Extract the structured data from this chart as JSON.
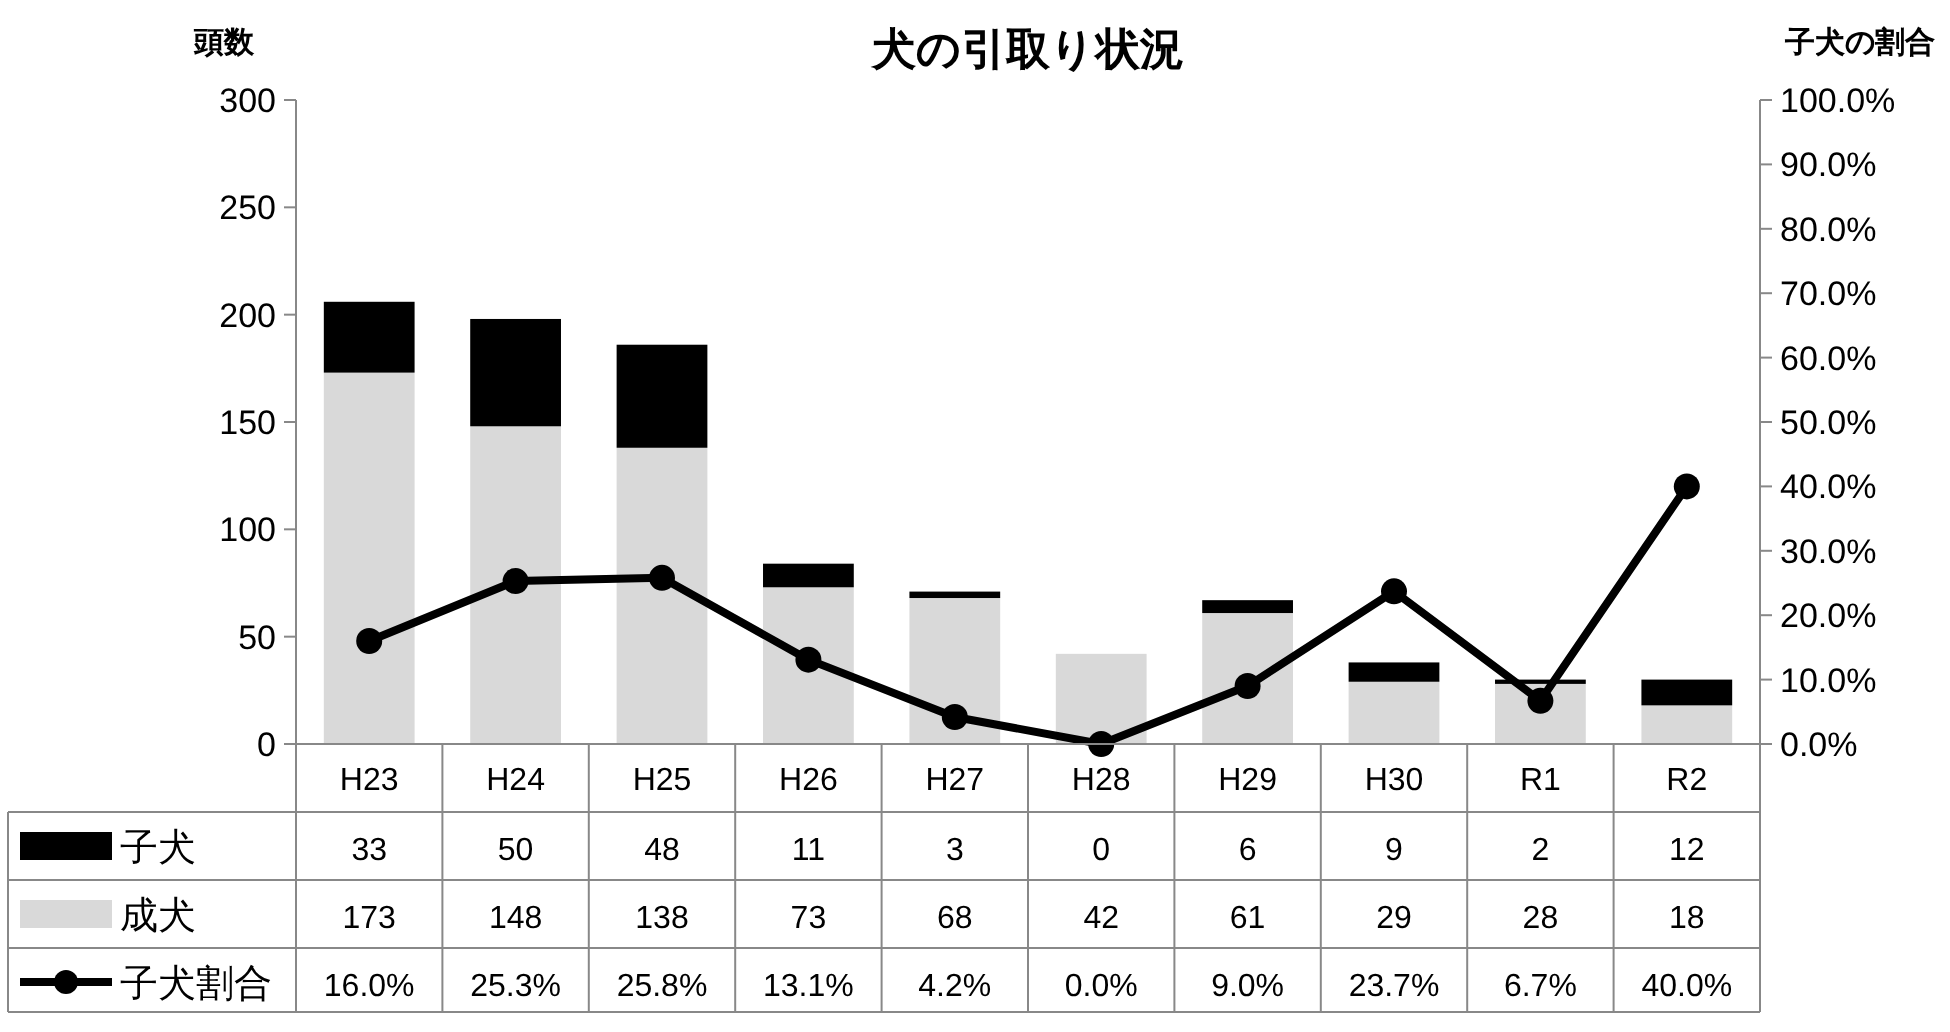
{
  "chart_data": {
    "type": "bar",
    "title": "犬の引取り状況",
    "ylabel": "頭数",
    "y2label": "子犬の割合",
    "stacked": true,
    "legend": "bottom",
    "marker": "circle",
    "categories": [
      "H23",
      "H24",
      "H25",
      "H26",
      "H27",
      "H28",
      "H29",
      "H30",
      "R1",
      "R2"
    ],
    "series": [
      {
        "name": "成犬",
        "color": "#d9d9d9",
        "values": [
          173,
          148,
          138,
          73,
          68,
          42,
          61,
          29,
          28,
          18
        ],
        "value_labels": [
          "173",
          "148",
          "138",
          "73",
          "68",
          "42",
          "61",
          "29",
          "28",
          "18"
        ]
      },
      {
        "name": "子犬",
        "color": "#000000",
        "values": [
          33,
          50,
          48,
          11,
          3,
          0,
          6,
          9,
          2,
          12
        ],
        "value_labels": [
          "33",
          "50",
          "48",
          "11",
          "3",
          "0",
          "6",
          "9",
          "2",
          "12"
        ]
      },
      {
        "name": "子犬割合",
        "type": "line",
        "axis": "y2",
        "color": "#000000",
        "values": [
          16.0,
          25.3,
          25.8,
          13.1,
          4.2,
          0.0,
          9.0,
          23.7,
          6.7,
          40.0
        ],
        "value_labels": [
          "16.0%",
          "25.3%",
          "25.8%",
          "13.1%",
          "4.2%",
          "0.0%",
          "9.0%",
          "23.7%",
          "6.7%",
          "40.0%"
        ]
      }
    ],
    "ylim": [
      0,
      300
    ],
    "yticks": [
      0,
      50,
      100,
      150,
      200,
      250,
      300
    ],
    "y2lim": [
      0,
      100
    ],
    "y2ticks": [
      {
        "value": 0,
        "label": "0.0%"
      },
      {
        "value": 10,
        "label": "10.0%"
      },
      {
        "value": 20,
        "label": "20.0%"
      },
      {
        "value": 30,
        "label": "30.0%"
      },
      {
        "value": 40,
        "label": "40.0%"
      },
      {
        "value": 50,
        "label": "50.0%"
      },
      {
        "value": 60,
        "label": "60.0%"
      },
      {
        "value": 70,
        "label": "70.0%"
      },
      {
        "value": 80,
        "label": "80.0%"
      },
      {
        "value": 90,
        "label": "90.0%"
      },
      {
        "value": 100,
        "label": "100.0%"
      }
    ]
  }
}
